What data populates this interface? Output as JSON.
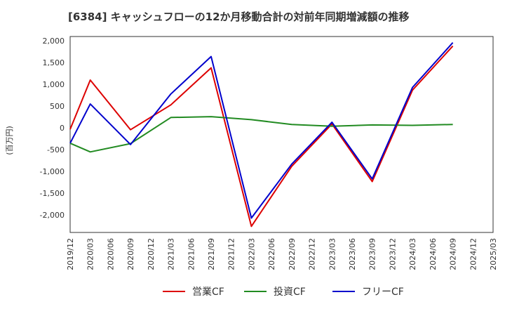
{
  "chart_data": {
    "type": "line",
    "title": "[6384]  キャッシュフローの12か月移動合計の対前年同期増減額の推移",
    "ylabel": "(百万円)",
    "xlabel": "",
    "ylim": [
      -2400,
      2100
    ],
    "y_ticks": [
      2000,
      1500,
      1000,
      500,
      0,
      -500,
      -1000,
      -1500,
      -2000
    ],
    "y_tick_labels": [
      "2,000",
      "1,500",
      "1,000",
      "500",
      "0",
      "-500",
      "-1,000",
      "-1,500",
      "-2,000"
    ],
    "x_tick_labels": [
      "2019/12",
      "2020/03",
      "2020/06",
      "2020/09",
      "2020/12",
      "2021/03",
      "2021/06",
      "2021/09",
      "2021/12",
      "2022/03",
      "2022/06",
      "2022/09",
      "2022/12",
      "2023/03",
      "2023/06",
      "2023/09",
      "2023/12",
      "2024/03",
      "2024/06",
      "2024/09",
      "2024/12",
      "2025/03"
    ],
    "grid": true,
    "legend_position": "bottom",
    "series": [
      {
        "name": "営業CF",
        "color": "#dd0000",
        "x": [
          "2019/12",
          "2020/03",
          "2020/09",
          "2021/03",
          "2021/09",
          "2022/03",
          "2022/09",
          "2023/03",
          "2023/09",
          "2024/03",
          "2024/09"
        ],
        "values": [
          -30,
          1100,
          -40,
          530,
          1380,
          -2260,
          -880,
          90,
          -1230,
          870,
          1880
        ]
      },
      {
        "name": "投資CF",
        "color": "#228b22",
        "x": [
          "2019/12",
          "2020/03",
          "2020/09",
          "2021/03",
          "2021/09",
          "2022/03",
          "2022/09",
          "2023/03",
          "2023/09",
          "2024/03",
          "2024/09"
        ],
        "values": [
          -350,
          -550,
          -360,
          240,
          260,
          190,
          80,
          40,
          70,
          60,
          80
        ]
      },
      {
        "name": "フリーCF",
        "color": "#0000cc",
        "x": [
          "2019/12",
          "2020/03",
          "2020/09",
          "2021/03",
          "2021/09",
          "2022/03",
          "2022/09",
          "2023/03",
          "2023/09",
          "2024/03",
          "2024/09"
        ],
        "values": [
          -350,
          550,
          -380,
          780,
          1640,
          -2070,
          -830,
          130,
          -1170,
          930,
          1960
        ]
      }
    ]
  }
}
